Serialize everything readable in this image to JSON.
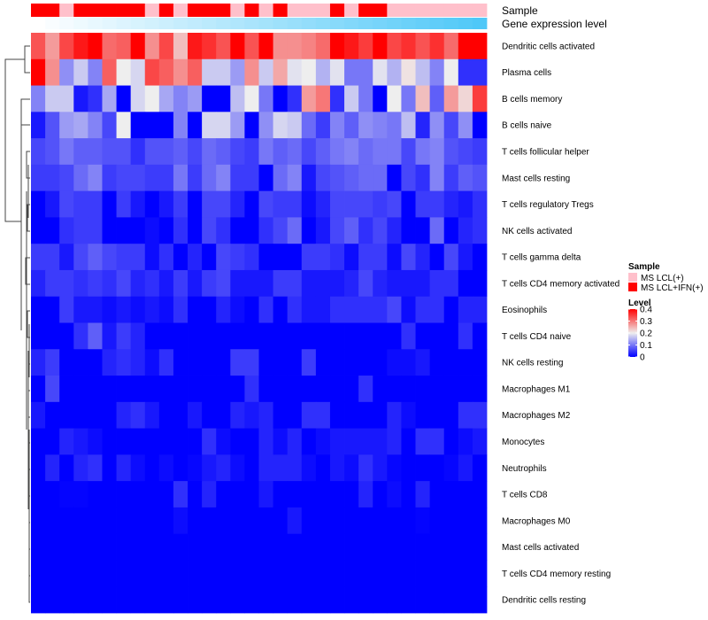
{
  "chart_data": {
    "type": "heatmap",
    "annotation_titles": [
      "Sample",
      "Gene expression level"
    ],
    "sample_annotation": [
      "MS LCL+IFN(+)",
      "MS LCL+IFN(+)",
      "MS LCL(+)",
      "MS LCL+IFN(+)",
      "MS LCL+IFN(+)",
      "MS LCL+IFN(+)",
      "MS LCL+IFN(+)",
      "MS LCL+IFN(+)",
      "MS LCL(+)",
      "MS LCL+IFN(+)",
      "MS LCL(+)",
      "MS LCL+IFN(+)",
      "MS LCL+IFN(+)",
      "MS LCL+IFN(+)",
      "MS LCL(+)",
      "MS LCL+IFN(+)",
      "MS LCL(+)",
      "MS LCL+IFN(+)",
      "MS LCL(+)",
      "MS LCL(+)",
      "MS LCL(+)",
      "MS LCL+IFN(+)",
      "MS LCL(+)",
      "MS LCL+IFN(+)",
      "MS LCL+IFN(+)",
      "MS LCL(+)",
      "MS LCL(+)",
      "MS LCL(+)",
      "MS LCL(+)",
      "MS LCL(+)",
      "MS LCL(+)",
      "MS LCL(+)"
    ],
    "gene_expression_rank": [
      0,
      1,
      2,
      3,
      4,
      5,
      6,
      7,
      8,
      9,
      10,
      11,
      12,
      13,
      14,
      15,
      16,
      17,
      18,
      19,
      20,
      21,
      22,
      23,
      24,
      25,
      26,
      27,
      28,
      29,
      30,
      31
    ],
    "rows": [
      {
        "name": "Dendritic cells activated",
        "values": [
          0.33,
          0.27,
          0.34,
          0.38,
          0.4,
          0.31,
          0.32,
          0.4,
          0.28,
          0.34,
          0.24,
          0.38,
          0.36,
          0.33,
          0.4,
          0.33,
          0.4,
          0.28,
          0.28,
          0.29,
          0.31,
          0.4,
          0.38,
          0.35,
          0.4,
          0.34,
          0.36,
          0.33,
          0.36,
          0.31,
          0.4,
          0.4
        ]
      },
      {
        "name": "Plasma cells",
        "values": [
          0.4,
          0.28,
          0.12,
          0.17,
          0.11,
          0.32,
          0.2,
          0.18,
          0.34,
          0.32,
          0.28,
          0.32,
          0.17,
          0.17,
          0.13,
          0.28,
          0.17,
          0.26,
          0.19,
          0.2,
          0.15,
          0.19,
          0.1,
          0.1,
          0.19,
          0.15,
          0.21,
          0.16,
          0.11,
          0.2,
          0.04,
          0.04
        ]
      },
      {
        "name": "B cells memory",
        "values": [
          0.11,
          0.17,
          0.17,
          0.02,
          0.04,
          0.14,
          0,
          0.18,
          0.2,
          0.14,
          0.11,
          0.13,
          0,
          0,
          0.16,
          0.2,
          0.1,
          0,
          0.04,
          0.27,
          0.3,
          0.04,
          0.17,
          0.1,
          0,
          0.2,
          0.1,
          0.24,
          0.08,
          0.27,
          0.22,
          0.35
        ]
      },
      {
        "name": "B cells naive",
        "values": [
          0.02,
          0.07,
          0.13,
          0.14,
          0.11,
          0.06,
          0.2,
          0,
          0,
          0,
          0.11,
          0,
          0.18,
          0.18,
          0.13,
          0,
          0.12,
          0.18,
          0.17,
          0.09,
          0.05,
          0.11,
          0.08,
          0.12,
          0.11,
          0.1,
          0.16,
          0.03,
          0.12,
          0.06,
          0.12,
          0
        ]
      },
      {
        "name": "T cells follicular helper",
        "values": [
          0.06,
          0.07,
          0.1,
          0.08,
          0.08,
          0.07,
          0.07,
          0.04,
          0.07,
          0.07,
          0.08,
          0.06,
          0.09,
          0.08,
          0.06,
          0.05,
          0.1,
          0.08,
          0.09,
          0.06,
          0.08,
          0.1,
          0.11,
          0.09,
          0.1,
          0.1,
          0.06,
          0.1,
          0.11,
          0.07,
          0.06,
          0.05
        ]
      },
      {
        "name": "Mast cells resting",
        "values": [
          0.05,
          0.05,
          0.06,
          0.09,
          0.11,
          0.05,
          0.06,
          0.06,
          0.05,
          0.05,
          0.1,
          0.05,
          0.09,
          0.11,
          0.05,
          0.05,
          0,
          0.09,
          0.11,
          0.02,
          0.06,
          0.07,
          0.08,
          0.09,
          0.09,
          0,
          0.06,
          0.04,
          0.11,
          0.05,
          0.08,
          0.07
        ]
      },
      {
        "name": "T cells regulatory  Tregs",
        "values": [
          0,
          0.02,
          0.06,
          0.05,
          0.05,
          0,
          0.05,
          0.02,
          0,
          0.02,
          0.05,
          0,
          0.06,
          0.06,
          0.03,
          0,
          0.06,
          0.05,
          0.05,
          0.01,
          0.03,
          0.06,
          0.06,
          0.06,
          0.05,
          0.06,
          0,
          0.05,
          0.05,
          0.03,
          0.02,
          0.04
        ]
      },
      {
        "name": "NK cells activated",
        "values": [
          0,
          0,
          0.04,
          0.05,
          0.05,
          0,
          0,
          0,
          0.01,
          0,
          0.04,
          0,
          0.06,
          0.04,
          0,
          0,
          0.04,
          0.06,
          0.09,
          0,
          0.02,
          0.06,
          0.08,
          0.04,
          0.06,
          0.03,
          0,
          0,
          0.09,
          0,
          0.03,
          0.04
        ]
      },
      {
        "name": "T cells gamma delta",
        "values": [
          0.05,
          0.05,
          0.02,
          0.06,
          0.08,
          0.06,
          0.05,
          0.05,
          0.01,
          0.04,
          0,
          0.03,
          0,
          0.06,
          0.05,
          0.04,
          0,
          0,
          0,
          0.05,
          0.05,
          0.04,
          0.01,
          0.05,
          0.05,
          0.01,
          0.06,
          0.03,
          0,
          0.06,
          0.02,
          0
        ]
      },
      {
        "name": "T cells CD4 memory activated",
        "values": [
          0.03,
          0.05,
          0.05,
          0.04,
          0.05,
          0.04,
          0.06,
          0.03,
          0.04,
          0.02,
          0.05,
          0.02,
          0.05,
          0.06,
          0.02,
          0.02,
          0.02,
          0.05,
          0.05,
          0.02,
          0.02,
          0.02,
          0.03,
          0.06,
          0.03,
          0.02,
          0.02,
          0.02,
          0.04,
          0.04,
          0,
          0
        ]
      },
      {
        "name": "Eosinophils",
        "values": [
          0,
          0,
          0.05,
          0.02,
          0.02,
          0.01,
          0.02,
          0.01,
          0.02,
          0.01,
          0.04,
          0,
          0,
          0.03,
          0.01,
          0,
          0.04,
          0,
          0.04,
          0.02,
          0.02,
          0.04,
          0.04,
          0.04,
          0.04,
          0.06,
          0.01,
          0.04,
          0.04,
          0,
          0.03,
          0.03
        ]
      },
      {
        "name": "T cells CD4 naive",
        "values": [
          0,
          0,
          0,
          0.04,
          0.08,
          0.02,
          0.05,
          0.03,
          0,
          0,
          0,
          0,
          0,
          0,
          0,
          0,
          0,
          0,
          0,
          0,
          0,
          0,
          0,
          0,
          0,
          0,
          0.04,
          0,
          0,
          0,
          0.04,
          0
        ]
      },
      {
        "name": "NK cells resting",
        "values": [
          0.03,
          0.05,
          0,
          0,
          0,
          0.03,
          0.04,
          0.03,
          0.01,
          0.04,
          0,
          0,
          0,
          0,
          0.05,
          0.05,
          0,
          0,
          0,
          0.05,
          0,
          0,
          0,
          0,
          0,
          0.01,
          0.01,
          0.02,
          0,
          0,
          0,
          0
        ]
      },
      {
        "name": "Macrophages M1",
        "values": [
          0,
          0.06,
          0,
          0,
          0,
          0,
          0,
          0,
          0,
          0,
          0,
          0,
          0,
          0,
          0,
          0.04,
          0,
          0,
          0,
          0,
          0,
          0,
          0,
          0.04,
          0,
          0,
          0,
          0,
          0,
          0,
          0,
          0
        ]
      },
      {
        "name": "Macrophages M2",
        "values": [
          0.02,
          0,
          0,
          0,
          0,
          0,
          0.03,
          0.04,
          0.02,
          0,
          0,
          0.02,
          0,
          0,
          0.03,
          0.02,
          0.03,
          0,
          0,
          0.04,
          0.04,
          0,
          0,
          0,
          0,
          0.03,
          0.01,
          0,
          0,
          0,
          0.04,
          0.04
        ]
      },
      {
        "name": "Monocytes",
        "values": [
          0,
          0,
          0.03,
          0.02,
          0.01,
          0,
          0,
          0,
          0,
          0,
          0,
          0,
          0.04,
          0.01,
          0,
          0,
          0.03,
          0.01,
          0.03,
          0,
          0.01,
          0.02,
          0.02,
          0.02,
          0.02,
          0.03,
          0,
          0.04,
          0.04,
          0,
          0.01,
          0.02
        ]
      },
      {
        "name": "Neutrophils",
        "values": [
          0,
          0.03,
          0,
          0.03,
          0.04,
          0,
          0.03,
          0.01,
          0,
          0.01,
          0,
          0.005,
          0.02,
          0.03,
          0.01,
          0,
          0.03,
          0.03,
          0.03,
          0.01,
          0,
          0.02,
          0.01,
          0.04,
          0.02,
          0.005,
          0,
          0,
          0,
          0.005,
          0.02,
          0
        ]
      },
      {
        "name": "T cells CD8",
        "values": [
          0,
          0,
          0.003,
          0.003,
          0,
          0,
          0,
          0,
          0,
          0,
          0.04,
          0,
          0.03,
          0,
          0,
          0,
          0.02,
          0,
          0,
          0,
          0,
          0,
          0,
          0.03,
          0,
          0.01,
          0,
          0.03,
          0,
          0,
          0,
          0
        ]
      },
      {
        "name": "Macrophages M0",
        "values": [
          0,
          0,
          0,
          0,
          0,
          0,
          0,
          0,
          0,
          0,
          0.01,
          0,
          0,
          0,
          0,
          0,
          0,
          0,
          0.02,
          0,
          0,
          0,
          0,
          0,
          0,
          0,
          0,
          0.003,
          0,
          0,
          0,
          0
        ]
      },
      {
        "name": "Mast cells activated",
        "values": [
          0,
          0,
          0,
          0,
          0,
          0,
          0,
          0,
          0,
          0,
          0,
          0,
          0,
          0,
          0,
          0,
          0,
          0,
          0,
          0,
          0,
          0,
          0,
          0,
          0,
          0,
          0,
          0,
          0,
          0,
          0,
          0
        ]
      },
      {
        "name": "T cells CD4 memory resting",
        "values": [
          0,
          0,
          0,
          0,
          0,
          0,
          0,
          0,
          0,
          0,
          0,
          0,
          0,
          0,
          0,
          0,
          0,
          0,
          0,
          0,
          0,
          0,
          0,
          0,
          0,
          0,
          0,
          0,
          0,
          0,
          0,
          0
        ]
      },
      {
        "name": "Dendritic cells resting",
        "values": [
          0,
          0,
          0,
          0,
          0,
          0,
          0,
          0,
          0,
          0,
          0,
          0,
          0,
          0,
          0,
          0,
          0,
          0,
          0,
          0,
          0,
          0,
          0,
          0,
          0,
          0,
          0,
          0,
          0,
          0,
          0,
          0
        ]
      }
    ],
    "color_scale": {
      "min": 0,
      "mid": 0.2,
      "max": 0.4,
      "low": "#0000FF",
      "midcolor": "#EEEEEE",
      "high": "#FF0000"
    },
    "legend": {
      "sample_title": "Sample",
      "sample_entries": [
        {
          "label": "MS LCL(+)",
          "color": "#FFC0CB"
        },
        {
          "label": "MS LCL+IFN(+)",
          "color": "#FF0000"
        }
      ],
      "level_title": "Level",
      "level_ticks": [
        "0.4",
        "0.3",
        "0.2",
        "0.1",
        "0"
      ],
      "placement": "right"
    },
    "gene_bar_colors": [
      "#FFFFFF",
      "#4FC8F8"
    ]
  }
}
